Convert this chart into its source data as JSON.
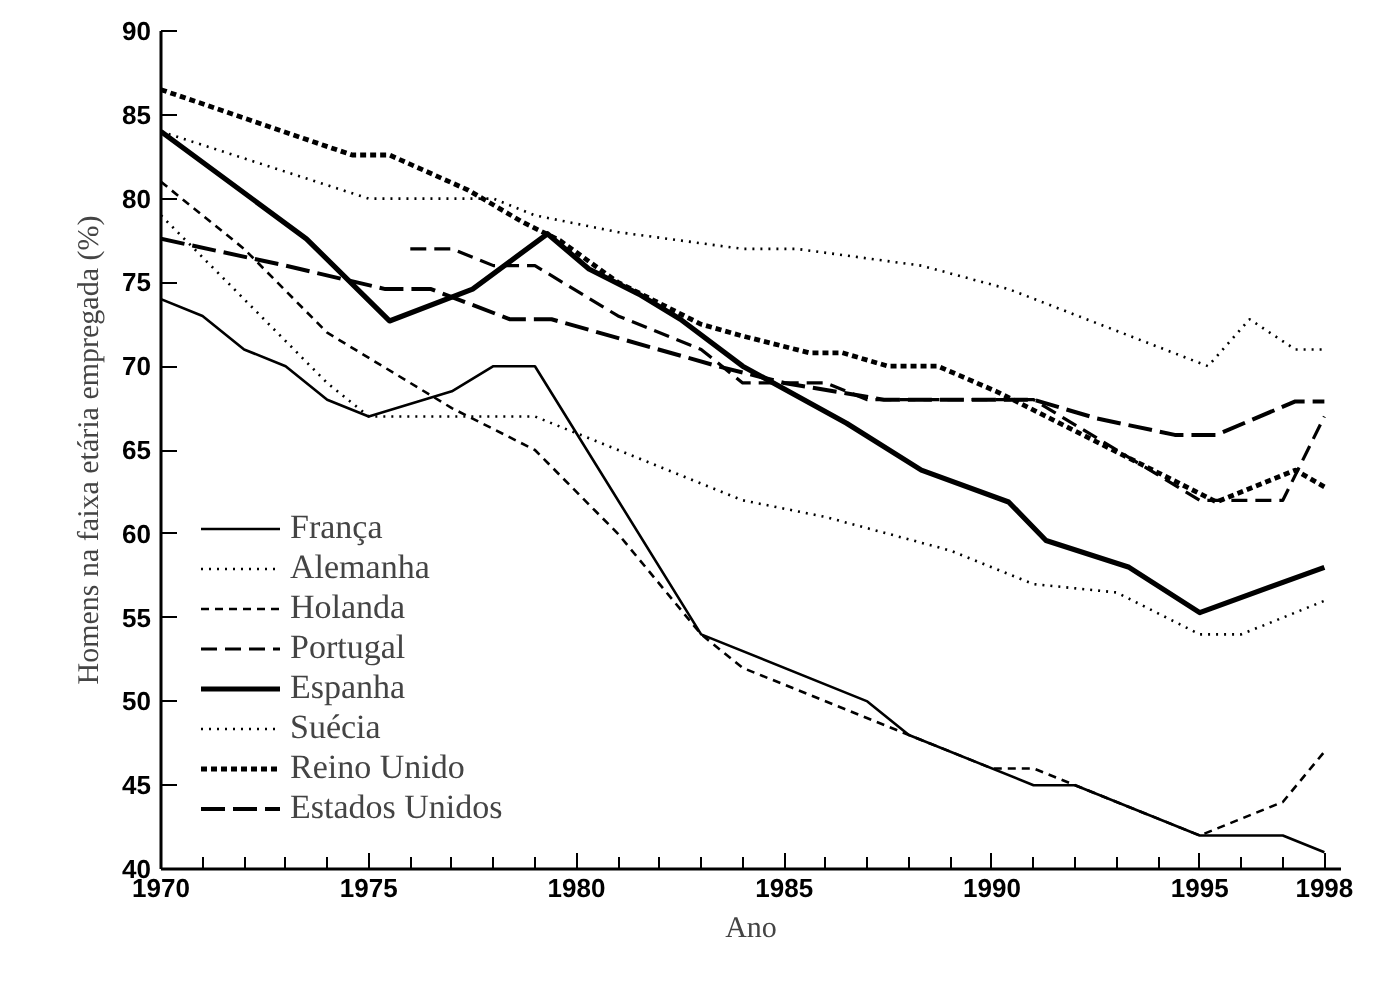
{
  "chart_data": {
    "type": "line",
    "xlabel": "Ano",
    "ylabel": "Homens na faixa etária empregada (%)",
    "xlim": [
      1970,
      1998.4
    ],
    "ylim": [
      40,
      90
    ],
    "xticks": [
      1970,
      1975,
      1980,
      1985,
      1990,
      1995,
      1998,
      {
        "value": 1971,
        "label": null
      },
      {
        "value": 1972,
        "label": null
      },
      {
        "value": 1973,
        "label": null
      },
      {
        "value": 1974,
        "label": null
      },
      {
        "value": 1976,
        "label": null
      },
      {
        "value": 1977,
        "label": null
      },
      {
        "value": 1978,
        "label": null
      },
      {
        "value": 1979,
        "label": null
      },
      {
        "value": 1981,
        "label": null
      },
      {
        "value": 1982,
        "label": null
      },
      {
        "value": 1983,
        "label": null
      },
      {
        "value": 1984,
        "label": null
      },
      {
        "value": 1986,
        "label": null
      },
      {
        "value": 1987,
        "label": null
      },
      {
        "value": 1988,
        "label": null
      },
      {
        "value": 1989,
        "label": null
      },
      {
        "value": 1991,
        "label": null
      },
      {
        "value": 1992,
        "label": null
      },
      {
        "value": 1993,
        "label": null
      },
      {
        "value": 1994,
        "label": null
      },
      {
        "value": 1996,
        "label": null
      },
      {
        "value": 1997,
        "label": null
      }
    ],
    "yticks": [
      40,
      45,
      50,
      55,
      60,
      65,
      70,
      75,
      80,
      85,
      90
    ],
    "legend": "bottom left",
    "grid": false,
    "series": [
      {
        "name": "França",
        "color": "#000000",
        "line_style": "solid",
        "x": [
          1970,
          1971,
          1972,
          1973,
          1974,
          1975,
          1977,
          1978,
          1979,
          1983,
          1987,
          1988,
          1991,
          1992,
          1995,
          1997,
          1998
        ],
        "values": [
          74,
          73,
          71,
          70,
          68,
          67,
          68.5,
          70,
          70,
          54,
          50,
          48,
          45,
          45,
          42,
          42,
          41
        ]
      },
      {
        "name": "Alemanha",
        "color": "#000000",
        "line_style": "dotted",
        "x": [
          1970,
          1972,
          1974,
          1975,
          1979,
          1982,
          1984,
          1986,
          1989,
          1991,
          1993,
          1995,
          1996,
          1998
        ],
        "values": [
          79,
          74,
          69,
          67,
          67,
          64,
          62,
          61,
          59,
          57,
          56.5,
          54,
          54,
          56
        ]
      },
      {
        "name": "Holanda",
        "color": "#000000",
        "line_style": "dashed",
        "x": [
          1970,
          1972,
          1974,
          1977,
          1979,
          1981,
          1983,
          1984,
          1988,
          1990,
          1991,
          1992,
          1995,
          1997,
          1998
        ],
        "values": [
          81,
          77,
          72,
          67.5,
          65,
          60,
          54,
          52,
          48,
          46,
          46,
          45,
          42,
          44,
          47
        ]
      },
      {
        "name": "Portugal",
        "color": "#000000",
        "line_style": "dashed",
        "x": [
          1976,
          1977,
          1978,
          1979,
          1981,
          1983,
          1984,
          1986,
          1987,
          1991,
          1995,
          1997,
          1998
        ],
        "values": [
          77,
          77,
          76,
          76,
          73,
          71,
          69,
          69,
          68,
          68,
          62,
          62,
          67
        ]
      },
      {
        "name": "Espanha",
        "color": "#000000",
        "line_style": "solid",
        "x": [
          1970,
          1973.5,
          1975.5,
          1977.5,
          1979.3,
          1980.3,
          1981.5,
          1982.5,
          1984,
          1986.5,
          1988.3,
          1990.4,
          1991.3,
          1993.3,
          1995,
          1998
        ],
        "values": [
          84,
          77.6,
          72.7,
          74.6,
          77.9,
          75.8,
          74.3,
          72.8,
          70,
          66.6,
          63.8,
          61.9,
          59.6,
          58,
          55.3,
          58
        ]
      },
      {
        "name": "Suécia",
        "color": "#000000",
        "line_style": "dotted",
        "x": [
          1970,
          1975,
          1978,
          1979,
          1981,
          1984,
          1985.3,
          1988.3,
          1990.4,
          1995.2,
          1996.2,
          1997.3,
          1998
        ],
        "values": [
          84,
          80,
          80,
          79,
          78,
          77,
          77,
          76,
          74.6,
          70,
          72.8,
          71,
          71
        ]
      },
      {
        "name": "Reino Unido",
        "color": "#000000",
        "line_style": "dashed",
        "x": [
          1970,
          1974.6,
          1975.5,
          1977.4,
          1978.7,
          1979.6,
          1981,
          1983,
          1984,
          1985.6,
          1986.4,
          1987.5,
          1988.7,
          1990.1,
          1995.4,
          1997.3,
          1998
        ],
        "values": [
          86.5,
          82.6,
          82.6,
          80.5,
          78.6,
          77.5,
          75,
          72.5,
          71.8,
          70.8,
          70.8,
          70,
          70,
          68.5,
          61.9,
          63.8,
          62.8
        ]
      },
      {
        "name": "Estados Unidos",
        "color": "#000000",
        "line_style": "dashed",
        "x": [
          1970,
          1973,
          1975.4,
          1976.5,
          1978.4,
          1979.4,
          1983.4,
          1985,
          1987.4,
          1991,
          1992.5,
          1994.4,
          1995.4,
          1997.3,
          1998
        ],
        "values": [
          77.6,
          76,
          74.6,
          74.6,
          72.8,
          72.8,
          70,
          69,
          68,
          68,
          66.9,
          65.9,
          65.9,
          67.9,
          67.9
        ]
      }
    ]
  }
}
